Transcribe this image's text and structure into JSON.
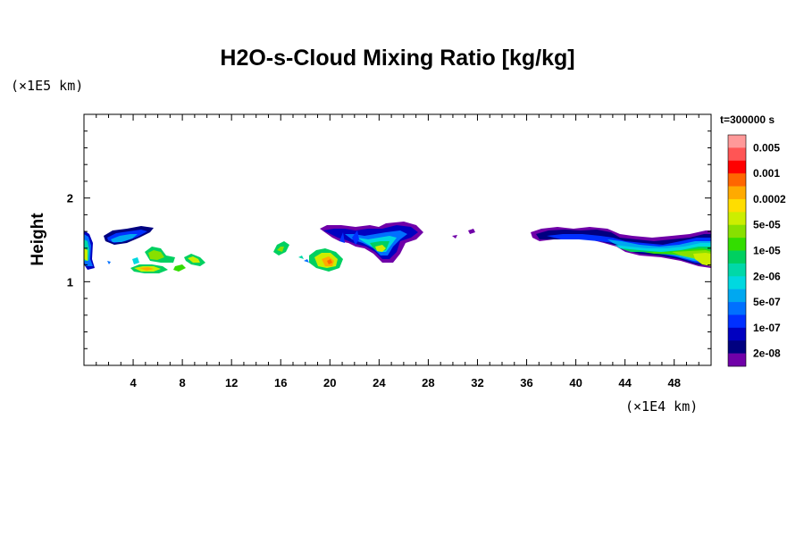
{
  "chart_data": {
    "type": "heatmap",
    "title": "H2O-s-Cloud Mixing Ratio [kg/kg]",
    "ylabel": "Height",
    "x_unit": "(×1E4 km)",
    "y_unit": "(×1E5 km)",
    "time_label": "t=300000 s",
    "xlim": [
      0,
      51
    ],
    "ylim": [
      0,
      3
    ],
    "x_ticks": [
      4,
      8,
      12,
      16,
      20,
      24,
      28,
      32,
      36,
      40,
      44,
      48
    ],
    "y_ticks": [
      1,
      2
    ],
    "colorbar": {
      "labels": [
        "0.005",
        "0.001",
        "0.0002",
        "5e-05",
        "1e-05",
        "2e-06",
        "5e-07",
        "1e-07",
        "2e-08"
      ],
      "colors": [
        "#ff9999",
        "#ff5555",
        "#ff0000",
        "#ff6600",
        "#ffaa00",
        "#ffdd00",
        "#ccee00",
        "#88e000",
        "#33dd00",
        "#00d060",
        "#00d8a8",
        "#00d8e0",
        "#00a8f0",
        "#0070ff",
        "#0030ff",
        "#0000c0",
        "#000080",
        "#7000a8"
      ]
    },
    "cloud_regions": [
      {
        "x": [
          0,
          0.7
        ],
        "y": [
          1.1,
          1.6
        ],
        "max_level": "1e-05"
      },
      {
        "x": [
          1.6,
          5.8
        ],
        "y": [
          1.5,
          1.65
        ],
        "max_level": "2e-06"
      },
      {
        "x": [
          2.5,
          9.5
        ],
        "y": [
          1.1,
          1.4
        ],
        "max_level": "0.0002"
      },
      {
        "x": [
          15.8,
          16.5
        ],
        "y": [
          1.35,
          1.45
        ],
        "max_level": "2e-06"
      },
      {
        "x": [
          17.8,
          21.5
        ],
        "y": [
          1.15,
          1.35
        ],
        "max_level": "0.0002"
      },
      {
        "x": [
          19.5,
          27.5
        ],
        "y": [
          1.25,
          1.65
        ],
        "max_level": "5e-05"
      },
      {
        "x": [
          30.2,
          31.5
        ],
        "y": [
          1.52,
          1.6
        ],
        "max_level": "2e-08"
      },
      {
        "x": [
          36.3,
          51
        ],
        "y": [
          1.2,
          1.65
        ],
        "max_level": "5e-05"
      }
    ]
  }
}
